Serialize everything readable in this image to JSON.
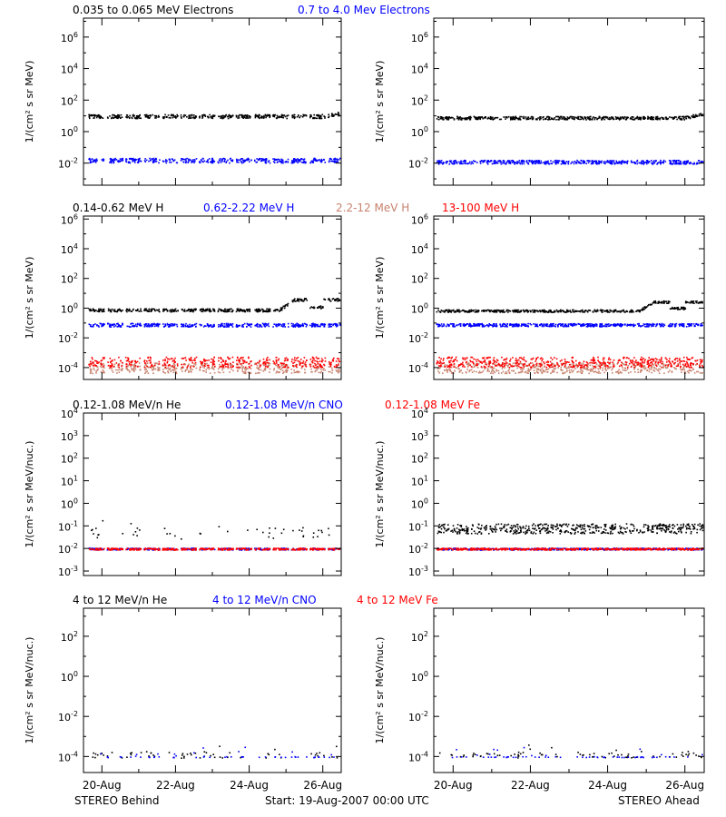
{
  "colors": {
    "black": "#000000",
    "blue": "#0000ff",
    "tan": "#c8826e",
    "red": "#ff0000"
  },
  "footer": {
    "left": "STEREO Behind",
    "center": "Start: 19-Aug-2007 00:00 UTC",
    "right": "STEREO Ahead"
  },
  "chart_data": [
    {
      "type": "scatter",
      "row": 0,
      "legend": [
        {
          "text": "0.035 to 0.065 MeV Electrons",
          "color": "#000000"
        },
        {
          "text": "0.7 to 4.0 Mev Electrons",
          "color": "#0000ff"
        }
      ],
      "ylabel": "1/(cm² s sr MeV)",
      "yscale": "log",
      "ylim_log10": [
        -3.4,
        7.2
      ],
      "yticks_log10": [
        -2,
        0,
        2,
        4,
        6
      ],
      "xlim_days": [
        0.5,
        7.5
      ],
      "xticks": [
        "20-Aug",
        "22-Aug",
        "24-Aug",
        "26-Aug"
      ],
      "panels": {
        "behind": {
          "series": [
            {
              "name": "0.035 to 0.065 MeV Electrons",
              "color": "#000000",
              "level_log10": 1.0,
              "spread": 0.12,
              "end_rise": 0.2
            },
            {
              "name": "0.7 to 4.0 Mev Electrons",
              "color": "#0000ff",
              "level_log10": -1.8,
              "spread": 0.15
            }
          ]
        },
        "ahead": {
          "series": [
            {
              "name": "0.035 to 0.065 MeV Electrons",
              "color": "#000000",
              "level_log10": 0.9,
              "spread": 0.1,
              "end_rise": 0.3
            },
            {
              "name": "0.7 to 4.0 Mev Electrons",
              "color": "#0000ff",
              "level_log10": -1.9,
              "spread": 0.12
            }
          ]
        }
      }
    },
    {
      "type": "scatter",
      "row": 1,
      "legend": [
        {
          "text": "0.14-0.62 MeV H",
          "color": "#000000"
        },
        {
          "text": "0.62-2.22 MeV H",
          "color": "#0000ff"
        },
        {
          "text": "2.2-12 MeV H",
          "color": "#c8826e"
        },
        {
          "text": "13-100 MeV H",
          "color": "#ff0000"
        }
      ],
      "ylabel": "1/(cm² s sr MeV)",
      "yscale": "log",
      "ylim_log10": [
        -4.8,
        6.2
      ],
      "yticks_log10": [
        -4,
        -2,
        0,
        2,
        4,
        6
      ],
      "xlim_days": [
        0.5,
        7.5
      ],
      "xticks": [
        "20-Aug",
        "22-Aug",
        "24-Aug",
        "26-Aug"
      ],
      "panels": {
        "behind": {
          "series": [
            {
              "name": "0.14-0.62 MeV H",
              "color": "#000000",
              "level_log10": -0.1,
              "spread": 0.1,
              "bump": 0.7
            },
            {
              "name": "0.62-2.22 MeV H",
              "color": "#0000ff",
              "level_log10": -1.1,
              "spread": 0.12
            },
            {
              "name": "2.2-12 MeV H",
              "color": "#c8826e",
              "level_log10": -4.0,
              "spread": 0.35
            },
            {
              "name": "13-100 MeV H",
              "color": "#ff0000",
              "level_log10": -3.6,
              "spread": 0.35
            }
          ]
        },
        "ahead": {
          "series": [
            {
              "name": "0.14-0.62 MeV H",
              "color": "#000000",
              "level_log10": -0.15,
              "spread": 0.08,
              "bump": 0.6
            },
            {
              "name": "0.62-2.22 MeV H",
              "color": "#0000ff",
              "level_log10": -1.1,
              "spread": 0.1
            },
            {
              "name": "2.2-12 MeV H",
              "color": "#c8826e",
              "level_log10": -4.0,
              "spread": 0.35
            },
            {
              "name": "13-100 MeV H",
              "color": "#ff0000",
              "level_log10": -3.6,
              "spread": 0.35
            }
          ]
        }
      }
    },
    {
      "type": "scatter",
      "row": 2,
      "legend": [
        {
          "text": "0.12-1.08 MeV/n He",
          "color": "#000000"
        },
        {
          "text": "0.12-1.08 MeV/n CNO",
          "color": "#0000ff"
        },
        {
          "text": "0.12-1.08 MeV Fe",
          "color": "#ff0000"
        }
      ],
      "ylabel": "1/(cm² s sr MeV/nuc.)",
      "yscale": "log",
      "ylim_log10": [
        -3.2,
        4.0
      ],
      "yticks_log10": [
        -3,
        -2,
        -1,
        0,
        1,
        2,
        3,
        4
      ],
      "xlim_days": [
        0.5,
        7.5
      ],
      "xticks": [
        "20-Aug",
        "22-Aug",
        "24-Aug",
        "26-Aug"
      ],
      "panels": {
        "behind": {
          "series": [
            {
              "name": "0.12-1.08 MeV/n He",
              "color": "#000000",
              "level_log10": -1.3,
              "spread": 0.25,
              "sparse": true
            },
            {
              "name": "0.12-1.08 MeV/n CNO",
              "color": "#0000ff",
              "level_log10": -2.0,
              "spread": 0.04
            },
            {
              "name": "0.12-1.08 MeV Fe",
              "color": "#ff0000",
              "level_log10": -2.0,
              "spread": 0.04
            }
          ]
        },
        "ahead": {
          "series": [
            {
              "name": "0.12-1.08 MeV/n He",
              "color": "#000000",
              "level_log10": -1.1,
              "spread": 0.22
            },
            {
              "name": "0.12-1.08 MeV/n CNO",
              "color": "#0000ff",
              "level_log10": -2.0,
              "spread": 0.04
            },
            {
              "name": "0.12-1.08 MeV Fe",
              "color": "#ff0000",
              "level_log10": -2.0,
              "spread": 0.04
            }
          ]
        }
      }
    },
    {
      "type": "scatter",
      "row": 3,
      "legend": [
        {
          "text": "4 to 12 MeV/n He",
          "color": "#000000"
        },
        {
          "text": "4 to 12 MeV/n CNO",
          "color": "#0000ff"
        },
        {
          "text": "4 to 12 MeV Fe",
          "color": "#ff0000"
        }
      ],
      "ylabel": "1/(cm² s sr MeV/nuc.)",
      "yscale": "log",
      "ylim_log10": [
        -4.8,
        3.4
      ],
      "yticks_log10": [
        -4,
        -2,
        0,
        2
      ],
      "xlim_days": [
        0.5,
        7.5
      ],
      "xticks": [
        "20-Aug",
        "22-Aug",
        "24-Aug",
        "26-Aug"
      ],
      "panels": {
        "behind": {
          "series": [
            {
              "name": "4 to 12 MeV/n He",
              "color": "#000000",
              "level_log10": -3.9,
              "spread": 0.15,
              "sparse": true
            },
            {
              "name": "4 to 12 MeV/n CNO",
              "color": "#0000ff",
              "level_log10": -4.0,
              "spread": 0.02,
              "sparse": true
            }
          ]
        },
        "ahead": {
          "series": [
            {
              "name": "4 to 12 MeV/n He",
              "color": "#000000",
              "level_log10": -3.9,
              "spread": 0.15,
              "sparse": true
            },
            {
              "name": "4 to 12 MeV/n CNO",
              "color": "#0000ff",
              "level_log10": -4.0,
              "spread": 0.02,
              "sparse": true
            }
          ]
        }
      }
    }
  ]
}
